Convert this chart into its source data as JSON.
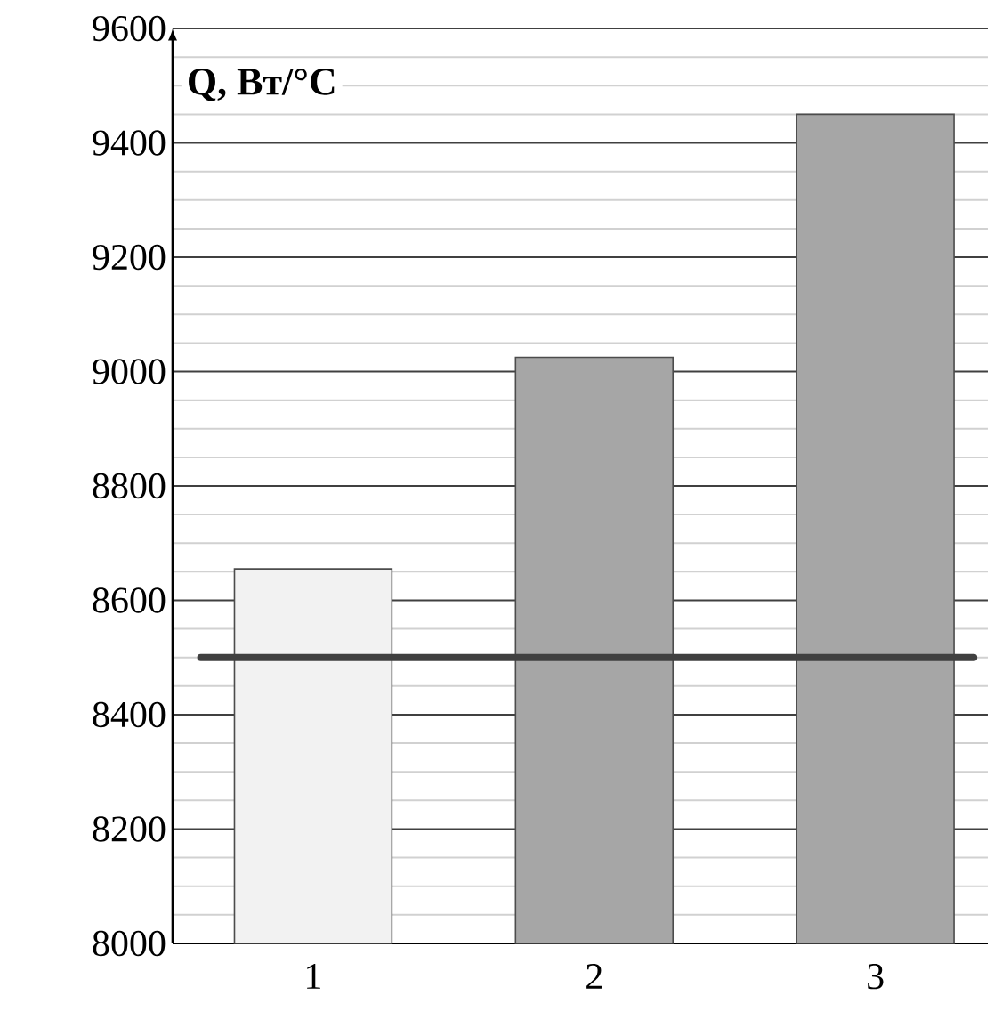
{
  "chart_data": {
    "type": "bar",
    "ylabel": "Q, Вт/°C",
    "categories": [
      "1",
      "2",
      "3"
    ],
    "values": [
      8655,
      9025,
      9450
    ],
    "colors": [
      "#f2f2f2",
      "#a6a6a6",
      "#a6a6a6"
    ],
    "ylim": [
      8000,
      9600
    ],
    "yticks": [
      8000,
      8200,
      8400,
      8600,
      8800,
      9000,
      9200,
      9400,
      9600
    ],
    "grid": "y",
    "ref_lines": [
      {
        "axis": "y",
        "value": 8500,
        "color": "#404040"
      }
    ]
  }
}
